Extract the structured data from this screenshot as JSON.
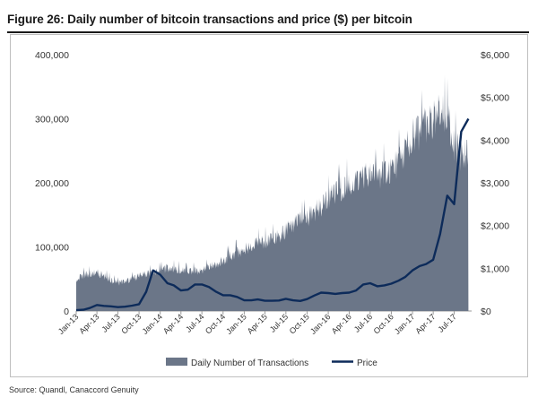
{
  "figure_title": "Figure 26: Daily number of bitcoin transactions and price ($) per bitcoin",
  "source": "Source: Quandl, Canaccord Genuity",
  "chart_data": {
    "type": "area",
    "secondary_type": "line",
    "x_dates": [
      "2013-01",
      "2013-02",
      "2013-03",
      "2013-04",
      "2013-05",
      "2013-06",
      "2013-07",
      "2013-08",
      "2013-09",
      "2013-10",
      "2013-11",
      "2013-12",
      "2014-01",
      "2014-02",
      "2014-03",
      "2014-04",
      "2014-05",
      "2014-06",
      "2014-07",
      "2014-08",
      "2014-09",
      "2014-10",
      "2014-11",
      "2014-12",
      "2015-01",
      "2015-02",
      "2015-03",
      "2015-04",
      "2015-05",
      "2015-06",
      "2015-07",
      "2015-08",
      "2015-09",
      "2015-10",
      "2015-11",
      "2015-12",
      "2016-01",
      "2016-02",
      "2016-03",
      "2016-04",
      "2016-05",
      "2016-06",
      "2016-07",
      "2016-08",
      "2016-09",
      "2016-10",
      "2016-11",
      "2016-12",
      "2017-01",
      "2017-02",
      "2017-03",
      "2017-04",
      "2017-05",
      "2017-06",
      "2017-07",
      "2017-08",
      "2017-09"
    ],
    "x_tick_labels": [
      "Jan-13",
      "Apr-13",
      "Jul-13",
      "Oct-13",
      "Jan-14",
      "Apr-14",
      "Jul-14",
      "Oct-14",
      "Jan-15",
      "Apr-15",
      "Jul-15",
      "Oct-15",
      "Jan-16",
      "Apr-16",
      "Jul-16",
      "Oct-16",
      "Jan-17",
      "Apr-17",
      "Jul-17"
    ],
    "y_left_ticks": [
      "0",
      "100,000",
      "200,000",
      "300,000",
      "400,000"
    ],
    "y_right_ticks": [
      "$0",
      "$1,000",
      "$2,000",
      "$3,000",
      "$4,000",
      "$5,000",
      "$6,000"
    ],
    "y_left_range": [
      0,
      400000
    ],
    "y_right_range": [
      0,
      6000
    ],
    "legend_position": "bottom-center",
    "grid": false,
    "series": [
      {
        "name": "Daily Number of Transactions",
        "axis": "left",
        "color": "#6b7688",
        "values": [
          50000,
          58000,
          60000,
          62000,
          57000,
          50000,
          45000,
          48000,
          52000,
          56000,
          60000,
          62000,
          65000,
          70000,
          68000,
          66000,
          63000,
          65000,
          66000,
          70000,
          75000,
          80000,
          90000,
          95000,
          100000,
          105000,
          110000,
          112000,
          115000,
          120000,
          130000,
          140000,
          145000,
          150000,
          160000,
          170000,
          180000,
          190000,
          200000,
          205000,
          210000,
          220000,
          220000,
          215000,
          225000,
          230000,
          240000,
          260000,
          280000,
          290000,
          300000,
          310000,
          320000,
          310000,
          270000,
          250000,
          255000
        ]
      },
      {
        "name": "Price",
        "axis": "right",
        "color": "#0d2b5a",
        "values": [
          18,
          30,
          70,
          140,
          120,
          110,
          90,
          100,
          125,
          160,
          450,
          950,
          850,
          650,
          600,
          480,
          500,
          620,
          620,
          560,
          450,
          370,
          370,
          330,
          250,
          250,
          270,
          240,
          240,
          245,
          285,
          250,
          235,
          280,
          360,
          430,
          420,
          400,
          420,
          430,
          480,
          620,
          650,
          580,
          600,
          640,
          710,
          800,
          950,
          1050,
          1100,
          1200,
          1800,
          2700,
          2500,
          4200,
          4500
        ]
      }
    ]
  }
}
